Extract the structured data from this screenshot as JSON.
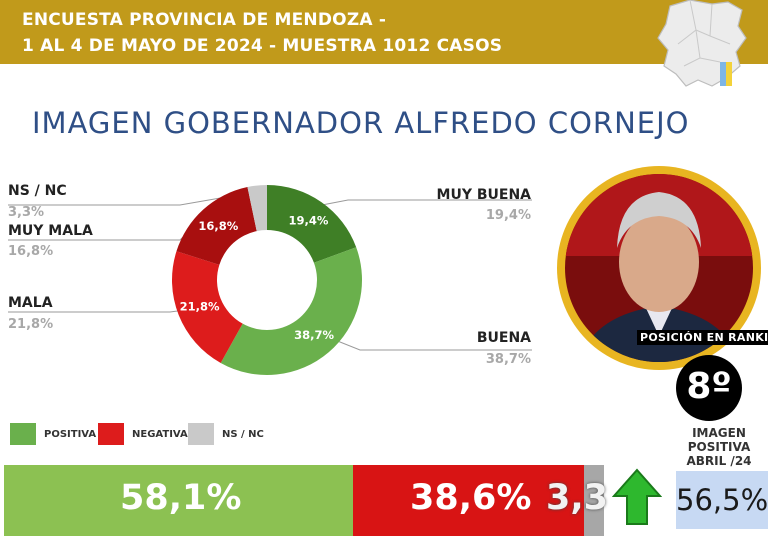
{
  "header": {
    "line1": "ENCUESTA PROVINCIA DE MENDOZA -",
    "line2": "1 AL 4 DE MAYO DE 2024 - MUESTRA 1012 CASOS"
  },
  "title": "IMAGEN GOBERNADOR  ALFREDO CORNEJO",
  "chart_data": {
    "type": "pie",
    "categories": [
      "MUY BUENA",
      "BUENA",
      "MALA",
      "MUY MALA",
      "NS / NC"
    ],
    "values": [
      19.4,
      38.7,
      21.8,
      16.8,
      3.3
    ],
    "labels": [
      "19,4%",
      "38,7%",
      "21,8%",
      "16,8%",
      "3,3%"
    ],
    "colors": [
      "#3f7f26",
      "#6ab04c",
      "#dd1c1c",
      "#a80f0f",
      "#c9c9c9"
    ],
    "donut": true
  },
  "outer_labels": {
    "muy_buena": {
      "name": "MUY BUENA",
      "pct": "19,4%"
    },
    "buena": {
      "name": "BUENA",
      "pct": "38,7%"
    },
    "mala": {
      "name": "MALA",
      "pct": "21,8%"
    },
    "muy_mala": {
      "name": "MUY MALA",
      "pct": "16,8%"
    },
    "nsnc": {
      "name": "NS / NC",
      "pct": "3,3%"
    }
  },
  "ranking": {
    "label": "POSICIÓN EN RANKING",
    "value": "8º"
  },
  "legend": {
    "positiva": {
      "label": "POSITIVA",
      "color": "#6ab04c"
    },
    "negativa": {
      "label": "NEGATIVA",
      "color": "#dd1c1c"
    },
    "nsnc": {
      "label": "NS / NC",
      "color": "#c9c9c9"
    }
  },
  "summary_bar": {
    "positiva": {
      "value": 58.1,
      "label": "58,1%",
      "color": "#8cc152"
    },
    "negativa": {
      "value": 38.6,
      "label": "38,6%",
      "color": "#d81414"
    },
    "nsnc": {
      "value": 3.3,
      "label": "3,3",
      "color": "#a7a7a7"
    }
  },
  "april": {
    "line1": "IMAGEN",
    "line2": "POSITIVA",
    "line3": "ABRIL /24",
    "value": "56,5%"
  }
}
